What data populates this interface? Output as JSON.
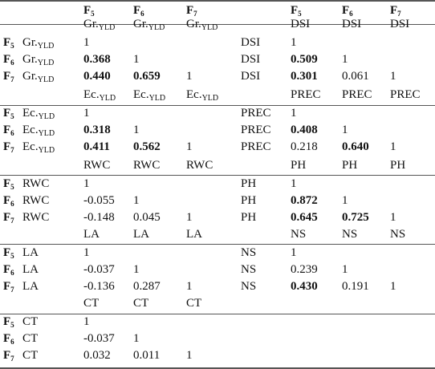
{
  "header": {
    "columns_left": [
      {
        "main": "F",
        "sub": "5"
      },
      {
        "main": "F",
        "sub": "6"
      },
      {
        "main": "F",
        "sub": "7"
      }
    ],
    "columns_right": [
      {
        "main": "F",
        "sub": "5"
      },
      {
        "main": "F",
        "sub": "6"
      },
      {
        "main": "F",
        "sub": "7"
      }
    ]
  },
  "blocks": [
    {
      "left_trait": {
        "main": "Gr.",
        "sub": "YLD"
      },
      "left_header": [
        {
          "main": "Gr.",
          "sub": "YLD"
        },
        {
          "main": "Gr.",
          "sub": "YLD"
        },
        {
          "main": "Gr.",
          "sub": "YLD"
        }
      ],
      "right_trait": {
        "main": "DSI",
        "sub": ""
      },
      "right_header": [
        {
          "main": "DSI",
          "sub": ""
        },
        {
          "main": "DSI",
          "sub": ""
        },
        {
          "main": "DSI",
          "sub": ""
        }
      ],
      "rows": [
        {
          "gen": {
            "main": "F",
            "sub": "5"
          },
          "left": [
            {
              "v": "1",
              "b": false
            }
          ],
          "right": [
            {
              "v": "1",
              "b": false
            }
          ]
        },
        {
          "gen": {
            "main": "F",
            "sub": "6"
          },
          "left": [
            {
              "v": "0.368",
              "b": true
            },
            {
              "v": "1",
              "b": false
            }
          ],
          "right": [
            {
              "v": "0.509",
              "b": true
            },
            {
              "v": "1",
              "b": false
            }
          ]
        },
        {
          "gen": {
            "main": "F",
            "sub": "7"
          },
          "left": [
            {
              "v": "0.440",
              "b": true
            },
            {
              "v": "0.659",
              "b": true
            },
            {
              "v": "1",
              "b": false
            }
          ],
          "right": [
            {
              "v": "0.301",
              "b": true
            },
            {
              "v": "0.061",
              "b": false
            },
            {
              "v": "1",
              "b": false
            }
          ]
        }
      ]
    },
    {
      "left_trait": {
        "main": "Ec.",
        "sub": "YLD"
      },
      "left_header": [
        {
          "main": "Ec.",
          "sub": "YLD"
        },
        {
          "main": "Ec.",
          "sub": "YLD"
        },
        {
          "main": "Ec.",
          "sub": "YLD"
        }
      ],
      "right_trait": {
        "main": "PREC",
        "sub": ""
      },
      "right_header": [
        {
          "main": "PREC",
          "sub": ""
        },
        {
          "main": "PREC",
          "sub": ""
        },
        {
          "main": "PREC",
          "sub": ""
        }
      ],
      "rows": [
        {
          "gen": {
            "main": "F",
            "sub": "5"
          },
          "left": [
            {
              "v": "1",
              "b": false
            }
          ],
          "right": [
            {
              "v": "1",
              "b": false
            }
          ]
        },
        {
          "gen": {
            "main": "F",
            "sub": "6"
          },
          "left": [
            {
              "v": "0.318",
              "b": true
            },
            {
              "v": "1",
              "b": false
            }
          ],
          "right": [
            {
              "v": "0.408",
              "b": true
            },
            {
              "v": "1",
              "b": false
            }
          ]
        },
        {
          "gen": {
            "main": "F",
            "sub": "7"
          },
          "left": [
            {
              "v": "0.411",
              "b": true
            },
            {
              "v": "0.562",
              "b": true
            },
            {
              "v": "1",
              "b": false
            }
          ],
          "right": [
            {
              "v": "0.218",
              "b": false
            },
            {
              "v": "0.640",
              "b": true
            },
            {
              "v": "1",
              "b": false
            }
          ]
        }
      ]
    },
    {
      "left_trait": {
        "main": "RWC",
        "sub": ""
      },
      "left_header": [
        {
          "main": "RWC",
          "sub": ""
        },
        {
          "main": "RWC",
          "sub": ""
        },
        {
          "main": "RWC",
          "sub": ""
        }
      ],
      "right_trait": {
        "main": "PH",
        "sub": ""
      },
      "right_header": [
        {
          "main": "PH",
          "sub": ""
        },
        {
          "main": "PH",
          "sub": ""
        },
        {
          "main": "PH",
          "sub": ""
        }
      ],
      "rows": [
        {
          "gen": {
            "main": "F",
            "sub": "5"
          },
          "left": [
            {
              "v": "1",
              "b": false
            }
          ],
          "right": [
            {
              "v": "1",
              "b": false
            }
          ]
        },
        {
          "gen": {
            "main": "F",
            "sub": "6"
          },
          "left": [
            {
              "v": "-0.055",
              "b": false
            },
            {
              "v": "1",
              "b": false
            }
          ],
          "right": [
            {
              "v": "0.872",
              "b": true
            },
            {
              "v": "1",
              "b": false
            }
          ]
        },
        {
          "gen": {
            "main": "F",
            "sub": "7"
          },
          "left": [
            {
              "v": "-0.148",
              "b": false
            },
            {
              "v": "0.045",
              "b": false
            },
            {
              "v": "1",
              "b": false
            }
          ],
          "right": [
            {
              "v": "0.645",
              "b": true
            },
            {
              "v": "0.725",
              "b": true
            },
            {
              "v": "1",
              "b": false
            }
          ]
        }
      ]
    },
    {
      "left_trait": {
        "main": "LA",
        "sub": ""
      },
      "left_header": [
        {
          "main": "LA",
          "sub": ""
        },
        {
          "main": "LA",
          "sub": ""
        },
        {
          "main": "LA",
          "sub": ""
        }
      ],
      "right_trait": {
        "main": "NS",
        "sub": ""
      },
      "right_header": [
        {
          "main": "NS",
          "sub": ""
        },
        {
          "main": "NS",
          "sub": ""
        },
        {
          "main": "NS",
          "sub": ""
        }
      ],
      "rows": [
        {
          "gen": {
            "main": "F",
            "sub": "5"
          },
          "left": [
            {
              "v": "1",
              "b": false
            }
          ],
          "right": [
            {
              "v": "1",
              "b": false
            }
          ]
        },
        {
          "gen": {
            "main": "F",
            "sub": "6"
          },
          "left": [
            {
              "v": "-0.037",
              "b": false
            },
            {
              "v": "1",
              "b": false
            }
          ],
          "right": [
            {
              "v": "0.239",
              "b": false
            },
            {
              "v": "1",
              "b": false
            }
          ]
        },
        {
          "gen": {
            "main": "F",
            "sub": "7"
          },
          "left": [
            {
              "v": "-0.136",
              "b": false
            },
            {
              "v": "0.287",
              "b": false
            },
            {
              "v": "1",
              "b": false
            }
          ],
          "right": [
            {
              "v": "0.430",
              "b": true
            },
            {
              "v": "0.191",
              "b": false
            },
            {
              "v": "1",
              "b": false
            }
          ]
        }
      ]
    },
    {
      "left_trait": {
        "main": "CT",
        "sub": ""
      },
      "left_header": [
        {
          "main": "CT",
          "sub": ""
        },
        {
          "main": "CT",
          "sub": ""
        },
        {
          "main": "CT",
          "sub": ""
        }
      ],
      "right_trait": null,
      "right_header": null,
      "rows": [
        {
          "gen": {
            "main": "F",
            "sub": "5"
          },
          "left": [
            {
              "v": "1",
              "b": false
            }
          ],
          "right": []
        },
        {
          "gen": {
            "main": "F",
            "sub": "6"
          },
          "left": [
            {
              "v": "-0.037",
              "b": false
            },
            {
              "v": "1",
              "b": false
            }
          ],
          "right": []
        },
        {
          "gen": {
            "main": "F",
            "sub": "7"
          },
          "left": [
            {
              "v": "0.032",
              "b": false
            },
            {
              "v": "0.011",
              "b": false
            },
            {
              "v": "1",
              "b": false
            }
          ],
          "right": []
        }
      ]
    }
  ]
}
